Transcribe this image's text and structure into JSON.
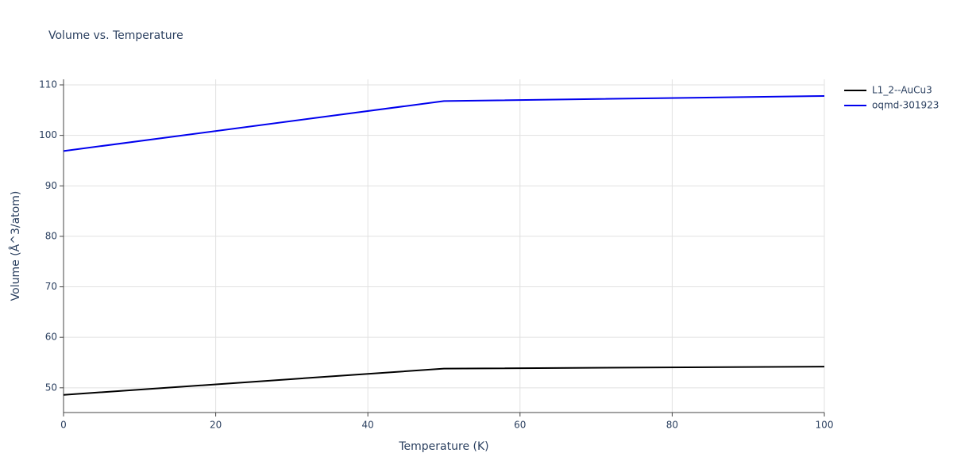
{
  "chart_data": {
    "type": "line",
    "title": "Volume vs. Temperature",
    "x_label": "Temperature (K)",
    "y_label": "Volume (Å^3/atom)",
    "x": [
      0,
      50,
      100
    ],
    "series": [
      {
        "name": "L1_2--AuCu3",
        "color": "#000000",
        "values": [
          48.6,
          53.8,
          54.2
        ]
      },
      {
        "name": "oqmd-301923",
        "color": "#0000ee",
        "values": [
          96.9,
          106.8,
          107.8
        ]
      }
    ],
    "xlim": [
      0,
      100
    ],
    "xticks": [
      0,
      20,
      40,
      60,
      80,
      100
    ],
    "ylim": [
      45.1,
      111.1
    ],
    "yticks": [
      50,
      60,
      70,
      80,
      90,
      100,
      110
    ],
    "grid": true,
    "legend": "top-right"
  }
}
